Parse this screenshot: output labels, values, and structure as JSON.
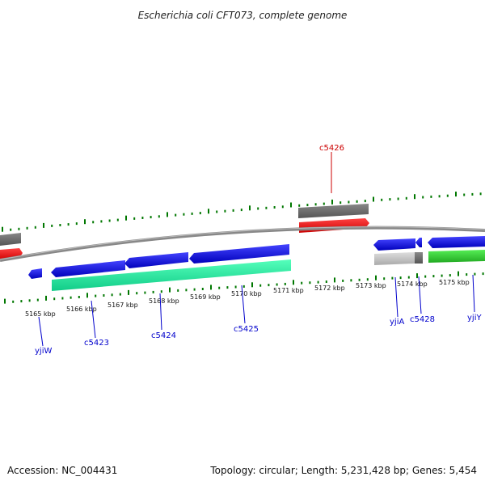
{
  "title": "Escherichia coli CFT073, complete genome",
  "footer": {
    "accession": "Accession: NC_004431",
    "summary": "Topology: circular; Length: 5,231,428 bp; Genes: 5,454"
  },
  "ruler_labels": [
    "5165 kbp",
    "5166 kbp",
    "5167 kbp",
    "5168 kbp",
    "5169 kbp",
    "5170 kbp",
    "5171 kbp",
    "5172 kbp",
    "5173 kbp",
    "5174 kbp",
    "5175 kbp"
  ],
  "gene_labels": [
    "c5426",
    "yjiW",
    "c5423",
    "c5424",
    "c5425",
    "yjiA",
    "c5428",
    "yjiY"
  ],
  "colors": {
    "cds": "#0000ee",
    "gene_gray": "#666666",
    "gene_light": "#bbbbbb",
    "gene_teal": "#22ee99",
    "gene_green": "#33cc33",
    "gene_red": "#ee0000",
    "tick": "#007700",
    "label_blue": "#0000cc",
    "label_red": "#cc0000",
    "backbone": "#888888"
  },
  "legend_icons": [
    "arrow-cds-icon",
    "arrow-gene-icon"
  ]
}
